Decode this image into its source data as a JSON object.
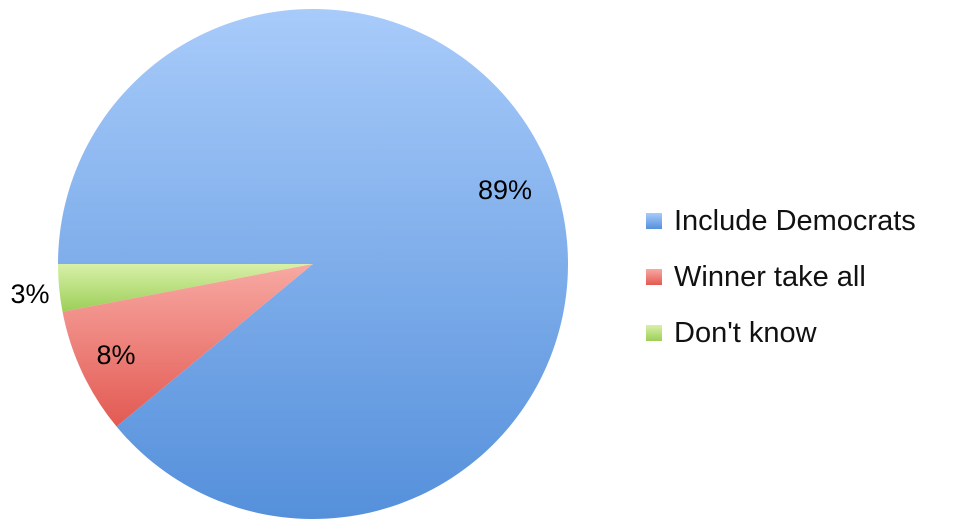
{
  "chart_data": {
    "type": "pie",
    "title": "",
    "categories": [
      "Include Democrats",
      "Winner take all",
      "Don't know"
    ],
    "values": [
      89,
      8,
      3
    ],
    "value_labels": [
      "89%",
      "8%",
      "3%"
    ],
    "colors": [
      "#6f9ee0",
      "#e86a64",
      "#a9d86a"
    ],
    "legend_position": "right",
    "start_angle": "9 o'clock, slices run counter-clockwise"
  },
  "legend": {
    "items": [
      {
        "label": "Include Democrats",
        "color": "#6f9ee0"
      },
      {
        "label": "Winner take all",
        "color": "#e86a64"
      },
      {
        "label": "Don't know",
        "color": "#a9d86a"
      }
    ]
  }
}
